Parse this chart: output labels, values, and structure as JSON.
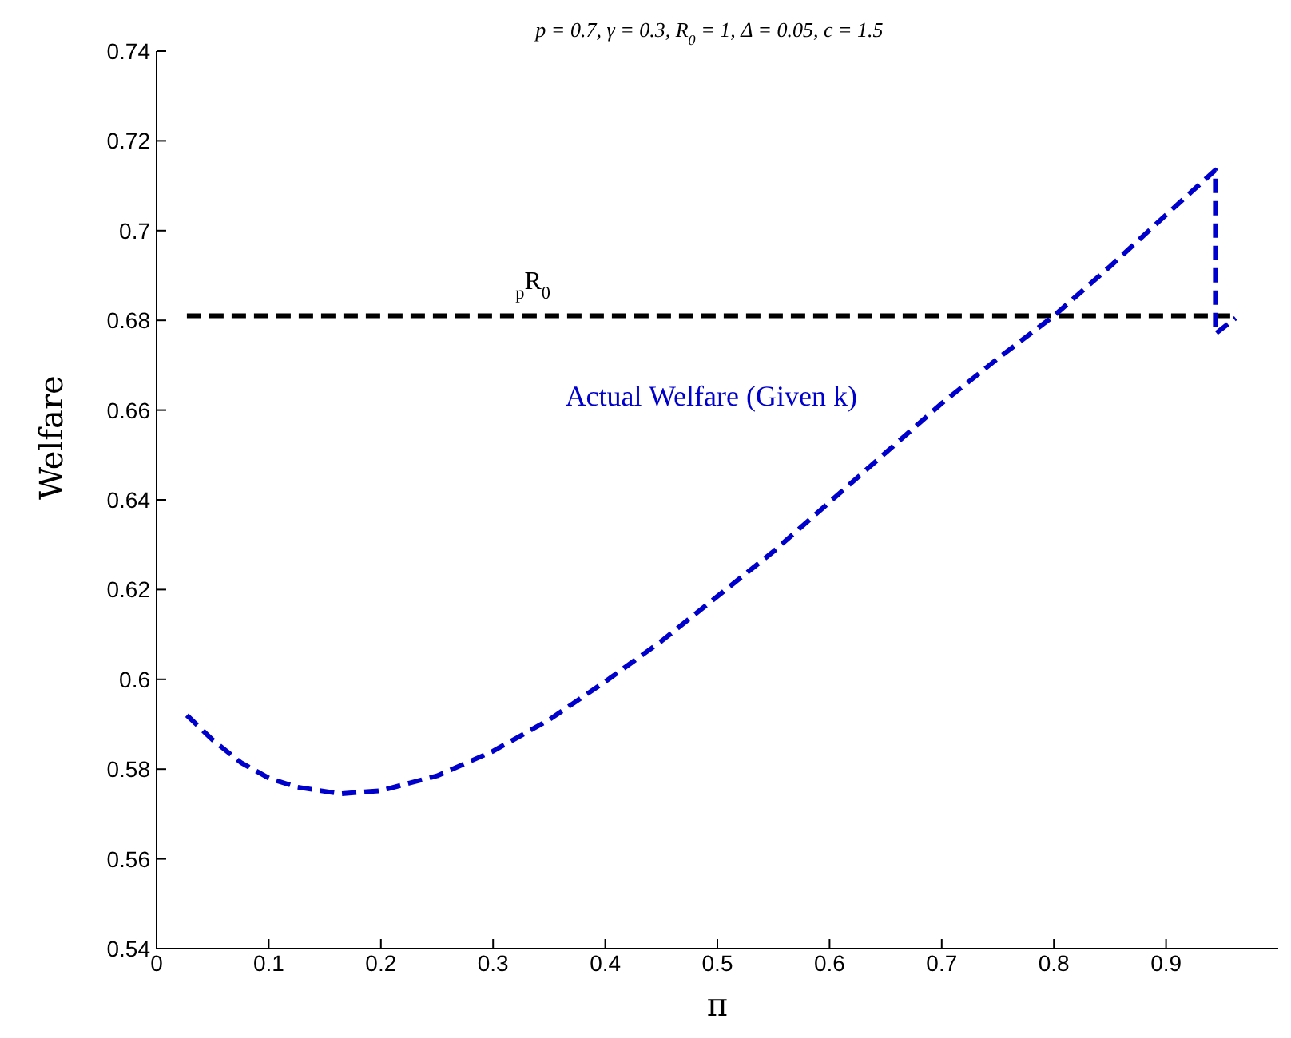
{
  "chart_data": {
    "type": "line",
    "title": "p = 0.7, γ = 0.3, R$_{0}$ = 1, Δ = 0.05, c = 1.5",
    "xlabel": "π",
    "ylabel": "Welfare",
    "xlim": [
      0,
      1
    ],
    "xticks": [
      0,
      0.1,
      0.2,
      0.3,
      0.4,
      0.5,
      0.6,
      0.7,
      0.8,
      0.9
    ],
    "ylim": [
      0.54,
      0.74
    ],
    "yticks": [
      0.54,
      0.56,
      0.58,
      0.6,
      0.62,
      0.64,
      0.66,
      0.68,
      0.7,
      0.72,
      0.74
    ],
    "marker": "none",
    "line_style": "dashed",
    "series": [
      {
        "name": "$_{p}$R$_{0}$",
        "color": "#000000",
        "x": [
          0.027,
          0.962
        ],
        "values": [
          0.681,
          0.681
        ]
      },
      {
        "name": "Actual Welfare (Given k)",
        "color": "#0000cc",
        "x": [
          0.027,
          0.05,
          0.075,
          0.1,
          0.125,
          0.164,
          0.2,
          0.25,
          0.3,
          0.35,
          0.4,
          0.45,
          0.5,
          0.55,
          0.6,
          0.65,
          0.7,
          0.75,
          0.8,
          0.85,
          0.9,
          0.944,
          0.944,
          0.962
        ],
        "values": [
          0.592,
          0.5865,
          0.5815,
          0.578,
          0.576,
          0.5745,
          0.5752,
          0.5785,
          0.584,
          0.591,
          0.5995,
          0.6085,
          0.6185,
          0.6285,
          0.6395,
          0.6505,
          0.6615,
          0.6715,
          0.681,
          0.692,
          0.7035,
          0.7135,
          0.677,
          0.6805
        ]
      }
    ]
  }
}
